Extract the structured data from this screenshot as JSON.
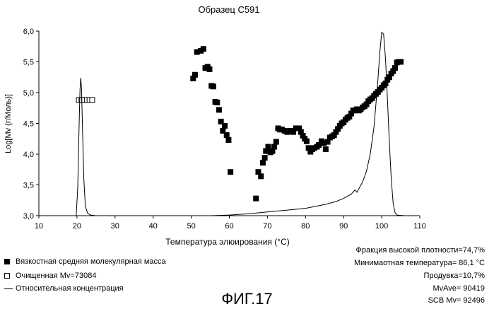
{
  "chart_data": {
    "type": "scatter",
    "title": "Образец С591",
    "xlabel": "Температура элюирования (°C)",
    "ylabel": "Log[Mv (г/Моль)]",
    "xlim": [
      10,
      110
    ],
    "ylim": [
      3.0,
      6.0
    ],
    "xticks": [
      "10",
      "20",
      "30",
      "40",
      "50",
      "60",
      "70",
      "80",
      "90",
      "100",
      "110"
    ],
    "yticks": [
      "3,0",
      "3,5",
      "4,0",
      "4,5",
      "5,0",
      "5,5",
      "6,0"
    ],
    "series": [
      {
        "name": "Вязкостная средняя молекулярная масса",
        "marker": "filled-square",
        "points": [
          [
            50.5,
            5.23
          ],
          [
            51.0,
            5.29
          ],
          [
            51.5,
            5.66
          ],
          [
            52.5,
            5.68
          ],
          [
            53.2,
            5.71
          ],
          [
            53.7,
            5.4
          ],
          [
            54.3,
            5.42
          ],
          [
            54.8,
            5.38
          ],
          [
            55.3,
            5.11
          ],
          [
            55.8,
            5.1
          ],
          [
            56.3,
            4.85
          ],
          [
            56.8,
            4.84
          ],
          [
            57.3,
            4.72
          ],
          [
            57.8,
            4.53
          ],
          [
            58.3,
            4.38
          ],
          [
            58.8,
            4.46
          ],
          [
            59.3,
            4.31
          ],
          [
            59.8,
            4.23
          ],
          [
            60.3,
            3.71
          ],
          [
            67.0,
            3.28
          ],
          [
            67.6,
            3.71
          ],
          [
            68.3,
            3.64
          ],
          [
            68.8,
            3.86
          ],
          [
            69.3,
            3.94
          ],
          [
            69.6,
            4.05
          ],
          [
            70.2,
            4.12
          ],
          [
            70.8,
            4.03
          ],
          [
            71.3,
            4.05
          ],
          [
            71.8,
            4.12
          ],
          [
            72.3,
            4.2
          ],
          [
            72.8,
            4.42
          ],
          [
            73.3,
            4.4
          ],
          [
            73.8,
            4.4
          ],
          [
            74.5,
            4.38
          ],
          [
            75.2,
            4.36
          ],
          [
            76.0,
            4.38
          ],
          [
            76.8,
            4.36
          ],
          [
            77.5,
            4.42
          ],
          [
            78.3,
            4.42
          ],
          [
            78.8,
            4.36
          ],
          [
            79.3,
            4.3
          ],
          [
            79.8,
            4.25
          ],
          [
            80.3,
            4.21
          ],
          [
            80.8,
            4.1
          ],
          [
            81.3,
            4.04
          ],
          [
            81.8,
            4.08
          ],
          [
            82.3,
            4.1
          ],
          [
            83.0,
            4.12
          ],
          [
            83.5,
            4.15
          ],
          [
            84.2,
            4.21
          ],
          [
            84.8,
            4.18
          ],
          [
            85.3,
            4.08
          ],
          [
            85.8,
            4.2
          ],
          [
            86.4,
            4.27
          ],
          [
            87.0,
            4.29
          ],
          [
            87.5,
            4.31
          ],
          [
            88.0,
            4.36
          ],
          [
            88.5,
            4.41
          ],
          [
            89.0,
            4.46
          ],
          [
            89.5,
            4.5
          ],
          [
            90.0,
            4.52
          ],
          [
            90.5,
            4.56
          ],
          [
            91.0,
            4.59
          ],
          [
            91.5,
            4.61
          ],
          [
            92.0,
            4.66
          ],
          [
            92.5,
            4.71
          ],
          [
            93.0,
            4.71
          ],
          [
            93.5,
            4.73
          ],
          [
            94.0,
            4.71
          ],
          [
            94.5,
            4.73
          ],
          [
            95.0,
            4.76
          ],
          [
            95.5,
            4.78
          ],
          [
            96.0,
            4.81
          ],
          [
            96.5,
            4.86
          ],
          [
            97.0,
            4.89
          ],
          [
            97.5,
            4.91
          ],
          [
            98.0,
            4.95
          ],
          [
            98.5,
            4.98
          ],
          [
            99.0,
            5.01
          ],
          [
            99.5,
            5.05
          ],
          [
            100.0,
            5.08
          ],
          [
            100.5,
            5.12
          ],
          [
            101.0,
            5.15
          ],
          [
            101.5,
            5.21
          ],
          [
            102.0,
            5.25
          ],
          [
            102.5,
            5.31
          ],
          [
            103.0,
            5.35
          ],
          [
            103.5,
            5.4
          ],
          [
            104.0,
            5.49
          ],
          [
            104.5,
            5.5
          ],
          [
            105.0,
            5.5
          ]
        ]
      },
      {
        "name": "Очищенная Mv=73084",
        "marker": "open-square",
        "points": [
          [
            20.5,
            4.88
          ],
          [
            21.2,
            4.88
          ],
          [
            21.9,
            4.88
          ],
          [
            22.6,
            4.88
          ],
          [
            23.3,
            4.88
          ],
          [
            24.0,
            4.88
          ]
        ]
      },
      {
        "name": "Относительная концентрация",
        "marker": "line",
        "points": [
          [
            10,
            3.0
          ],
          [
            19.8,
            3.0
          ],
          [
            20.2,
            3.45
          ],
          [
            20.5,
            4.3
          ],
          [
            20.8,
            5.05
          ],
          [
            21.0,
            5.24
          ],
          [
            21.2,
            5.05
          ],
          [
            21.5,
            4.3
          ],
          [
            21.8,
            3.6
          ],
          [
            22.2,
            3.15
          ],
          [
            22.8,
            3.04
          ],
          [
            23.5,
            3.01
          ],
          [
            25,
            3.0
          ],
          [
            55,
            3.0
          ],
          [
            60,
            3.01
          ],
          [
            65,
            3.03
          ],
          [
            70,
            3.06
          ],
          [
            75,
            3.09
          ],
          [
            80,
            3.12
          ],
          [
            85,
            3.18
          ],
          [
            88,
            3.23
          ],
          [
            90,
            3.28
          ],
          [
            92,
            3.35
          ],
          [
            93,
            3.42
          ],
          [
            93.5,
            3.38
          ],
          [
            94,
            3.44
          ],
          [
            95,
            3.55
          ],
          [
            96,
            3.72
          ],
          [
            97,
            4.0
          ],
          [
            98,
            4.45
          ],
          [
            99,
            5.2
          ],
          [
            99.5,
            5.65
          ],
          [
            100.0,
            5.98
          ],
          [
            100.5,
            5.95
          ],
          [
            101,
            5.55
          ],
          [
            101.5,
            4.9
          ],
          [
            102,
            4.2
          ],
          [
            102.5,
            3.6
          ],
          [
            103,
            3.2
          ],
          [
            103.5,
            3.05
          ],
          [
            104,
            3.01
          ],
          [
            106,
            3.0
          ],
          [
            110,
            3.0
          ]
        ]
      }
    ],
    "legend_position": "bottom-left",
    "grid": false
  },
  "legend": [
    {
      "label": "Вязкостная средняя молекулярная масса",
      "marker": "filled-square"
    },
    {
      "label": "Очищенная Mv=73084",
      "marker": "open-square"
    },
    {
      "label": "Относительная концентрация",
      "marker": "line"
    }
  ],
  "stats": [
    "Фракция высокой плотности=74,7%",
    "Минимаотная температура= 86,1 °C",
    "Продувка=10,7%",
    "MvAve= 90419",
    "SCB Mv= 92496"
  ],
  "figure_label": "ФИГ.17"
}
